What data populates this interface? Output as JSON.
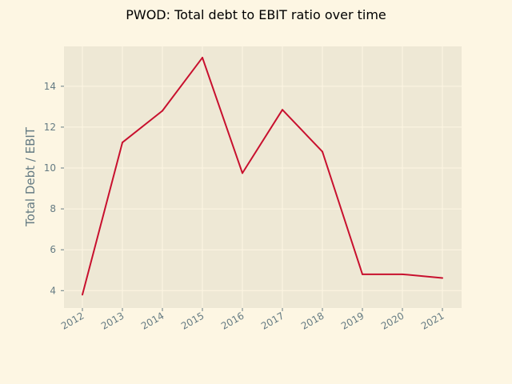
{
  "chart_data": {
    "type": "line",
    "title": "PWOD: Total debt to EBIT ratio over time",
    "xlabel": "",
    "ylabel": "Total Debt / EBIT",
    "categories": [
      "2012",
      "2013",
      "2014",
      "2015",
      "2016",
      "2017",
      "2018",
      "2019",
      "2020",
      "2021"
    ],
    "series": [
      {
        "values": [
          3.8,
          11.25,
          12.8,
          15.4,
          9.75,
          12.85,
          10.8,
          4.8,
          4.8,
          4.62
        ]
      }
    ],
    "ylim": [
      3.15,
      15.95
    ],
    "yticks": [
      4,
      6,
      8,
      10,
      12,
      14
    ],
    "grid": true,
    "colors": {
      "figure_background": "#fdf6e3",
      "plot_background": "#eee8d5",
      "grid": "#fdf6e3",
      "line": "#c8102e",
      "tick_text": "#657b83"
    }
  }
}
